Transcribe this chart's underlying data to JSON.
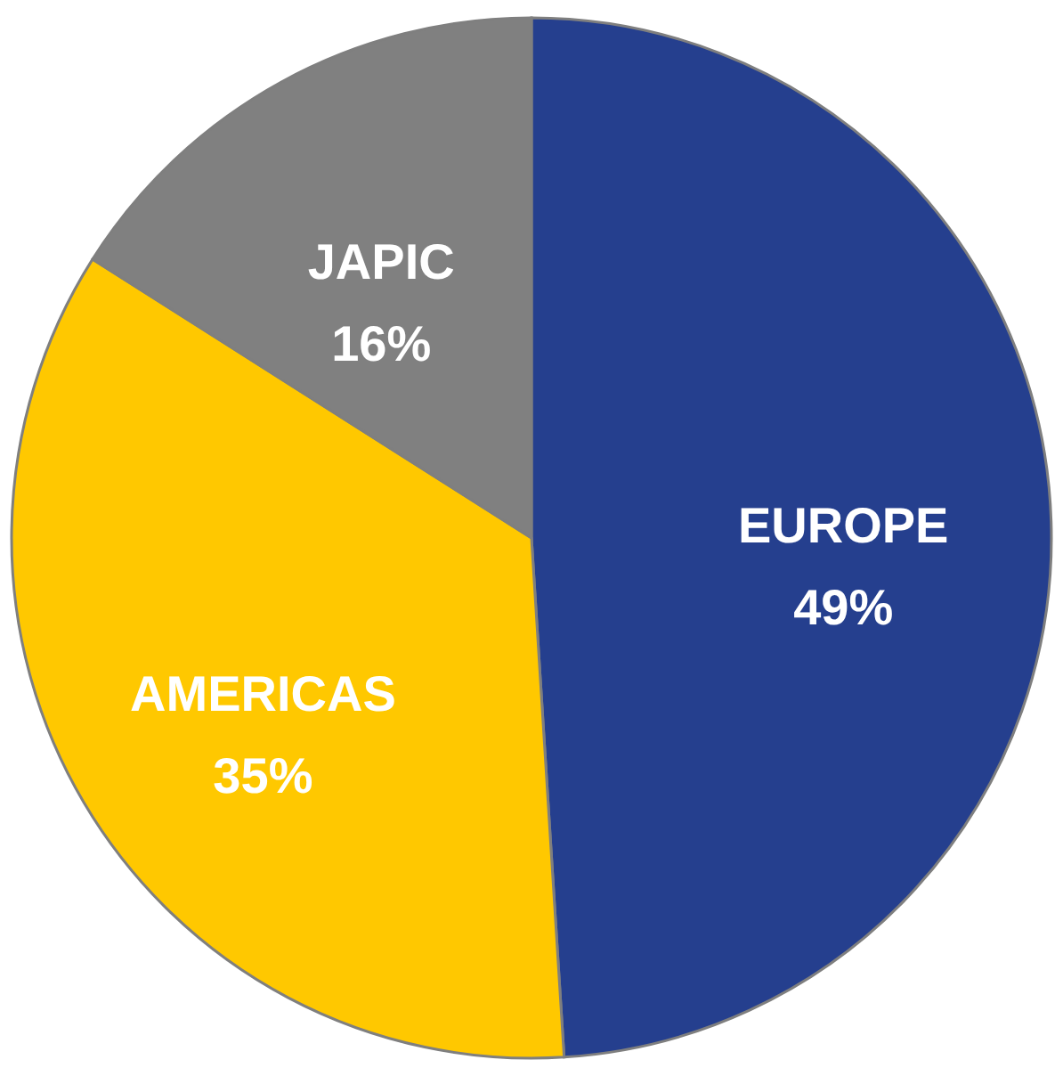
{
  "chart_data": {
    "type": "pie",
    "categories": [
      "EUROPE",
      "AMERICAS",
      "JAPIC"
    ],
    "values": [
      49,
      35,
      16
    ],
    "colors": [
      "#253f8e",
      "#ffc800",
      "#808080"
    ],
    "value_labels": [
      "49%",
      "35%",
      "16%"
    ]
  }
}
